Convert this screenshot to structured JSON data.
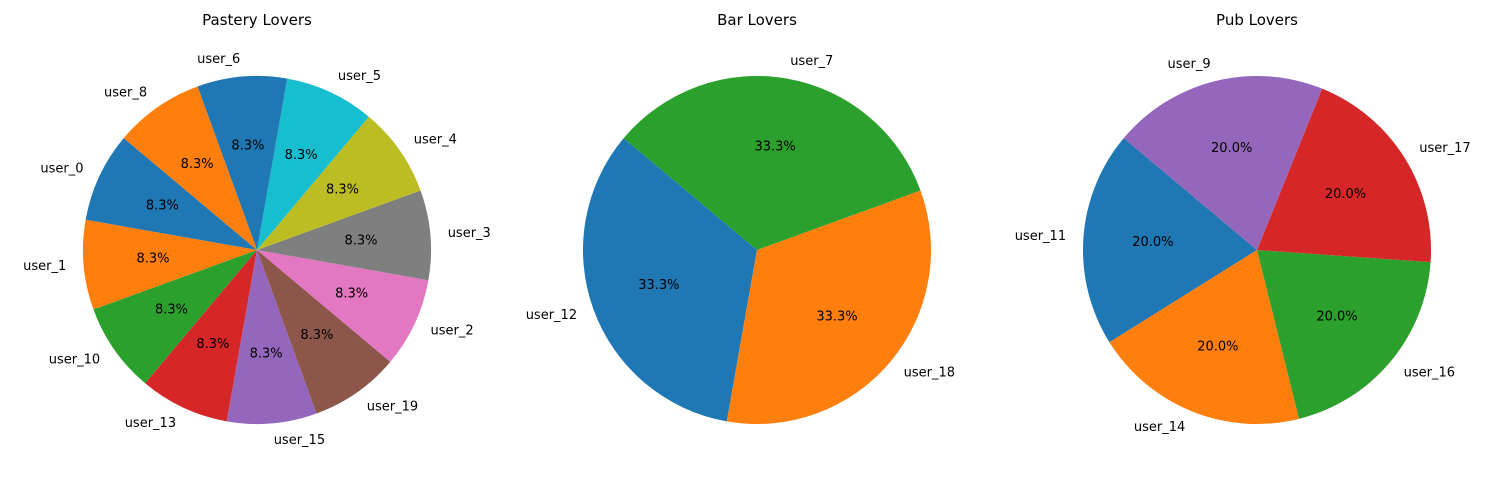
{
  "chart_data": [
    {
      "type": "pie",
      "title": "Pastery Lovers",
      "start_angle_deg": 140,
      "direction": "counterclockwise",
      "autopct_format": "%.1f%%",
      "labels": [
        "user_0",
        "user_1",
        "user_10",
        "user_13",
        "user_15",
        "user_19",
        "user_2",
        "user_3",
        "user_4",
        "user_5",
        "user_6",
        "user_8"
      ],
      "values": [
        1,
        1,
        1,
        1,
        1,
        1,
        1,
        1,
        1,
        1,
        1,
        1
      ],
      "colors": [
        "#1f77b4",
        "#ff7f0e",
        "#2ca02c",
        "#d62728",
        "#9467bd",
        "#8c564b",
        "#e377c2",
        "#7f7f7f",
        "#bcbd22",
        "#17becf",
        "#1f77b4",
        "#ff7f0e"
      ]
    },
    {
      "type": "pie",
      "title": "Bar Lovers",
      "start_angle_deg": 140,
      "direction": "counterclockwise",
      "autopct_format": "%.1f%%",
      "labels": [
        "user_12",
        "user_18",
        "user_7"
      ],
      "values": [
        1,
        1,
        1
      ],
      "colors": [
        "#1f77b4",
        "#ff7f0e",
        "#2ca02c"
      ]
    },
    {
      "type": "pie",
      "title": "Pub Lovers",
      "start_angle_deg": 140,
      "direction": "counterclockwise",
      "autopct_format": "%.1f%%",
      "labels": [
        "user_11",
        "user_14",
        "user_16",
        "user_17",
        "user_9"
      ],
      "values": [
        1,
        1,
        1,
        1,
        1
      ],
      "colors": [
        "#1f77b4",
        "#ff7f0e",
        "#2ca02c",
        "#d62728",
        "#9467bd"
      ]
    }
  ]
}
